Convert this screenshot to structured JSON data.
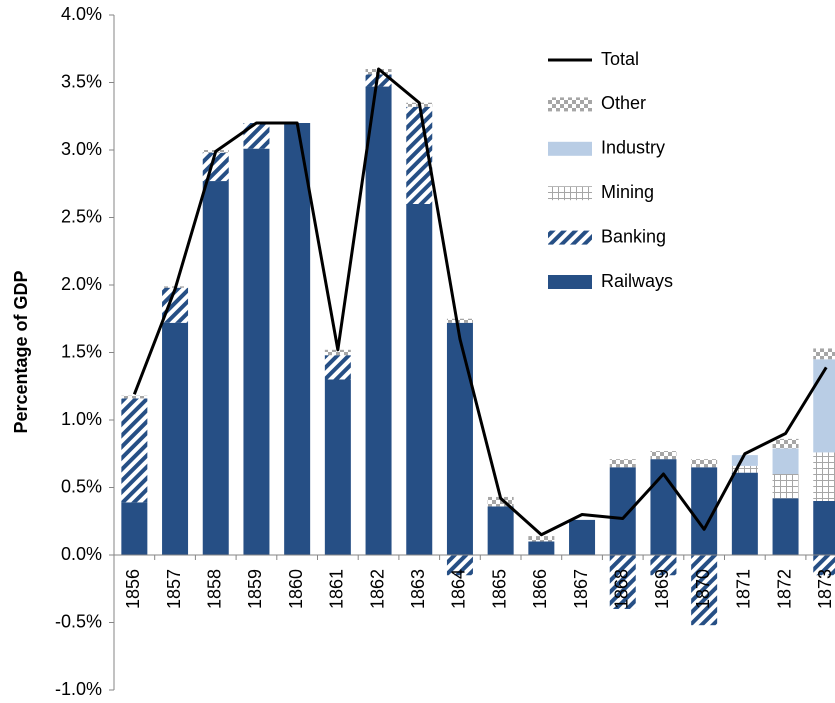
{
  "chart_data": {
    "type": "bar",
    "y_label": "Percentage of GDP",
    "categories": [
      "1856",
      "1857",
      "1858",
      "1859",
      "1860",
      "1861",
      "1862",
      "1863",
      "1864",
      "1865",
      "1866",
      "1867",
      "1868",
      "1869",
      "1870",
      "1871",
      "1872",
      "1873"
    ],
    "series": [
      {
        "name": "Railways",
        "type": "bar",
        "pattern": "solid",
        "color": "#264f85",
        "values": [
          0.39,
          1.72,
          2.77,
          3.01,
          3.2,
          1.3,
          3.47,
          2.6,
          1.72,
          0.36,
          0.1,
          0.26,
          0.65,
          0.71,
          0.65,
          0.61,
          0.42,
          0.4
        ]
      },
      {
        "name": "Banking",
        "type": "bar",
        "pattern": "stripes",
        "color": "#264f85",
        "values": [
          0.77,
          0.26,
          0.21,
          0.19,
          0,
          0.18,
          0.09,
          0.72,
          -0.15,
          0,
          0,
          0,
          -0.4,
          -0.15,
          -0.52,
          0,
          0,
          -0.15
        ]
      },
      {
        "name": "Mining",
        "type": "bar",
        "pattern": "grid",
        "color": "#a6a6a6",
        "values": [
          0,
          0,
          0,
          0,
          0,
          0,
          0,
          0,
          0,
          0,
          0,
          0,
          0,
          0,
          0,
          0.05,
          0.18,
          0.36
        ]
      },
      {
        "name": "Industry",
        "type": "bar",
        "pattern": "solid",
        "color": "#b9cde5",
        "values": [
          0,
          0,
          0,
          0,
          0,
          0,
          0,
          0,
          0,
          0,
          0,
          0,
          0,
          0,
          0,
          0.08,
          0.19,
          0.69
        ]
      },
      {
        "name": "Other",
        "type": "bar",
        "pattern": "checker",
        "color": "#a6a6a6",
        "values": [
          0.02,
          0.01,
          0.02,
          0,
          0,
          0.04,
          0.04,
          0.03,
          0.03,
          0.07,
          0.04,
          0,
          0.06,
          0.06,
          0.06,
          0,
          0.07,
          0.08
        ]
      },
      {
        "name": "Total",
        "type": "line",
        "color": "#000000",
        "values": [
          1.19,
          1.97,
          2.99,
          3.2,
          3.2,
          1.52,
          3.6,
          3.35,
          1.6,
          0.42,
          0.15,
          0.3,
          0.27,
          0.6,
          0.19,
          0.75,
          0.9,
          1.39
        ]
      }
    ],
    "ylim": [
      -1,
      4
    ],
    "yticks": [
      {
        "value": -1,
        "label": "-1.0%"
      },
      {
        "value": -0.5,
        "label": "-0.5%"
      },
      {
        "value": 0,
        "label": "0.0%"
      },
      {
        "value": 0.5,
        "label": "0.5%"
      },
      {
        "value": 1,
        "label": "1.0%"
      },
      {
        "value": 1.5,
        "label": "1.5%"
      },
      {
        "value": 2,
        "label": "2.0%"
      },
      {
        "value": 2.5,
        "label": "2.5%"
      },
      {
        "value": 3,
        "label": "3.0%"
      },
      {
        "value": 3.5,
        "label": "3.5%"
      },
      {
        "value": 4,
        "label": "4.0%"
      }
    ],
    "legend": "upper right"
  }
}
